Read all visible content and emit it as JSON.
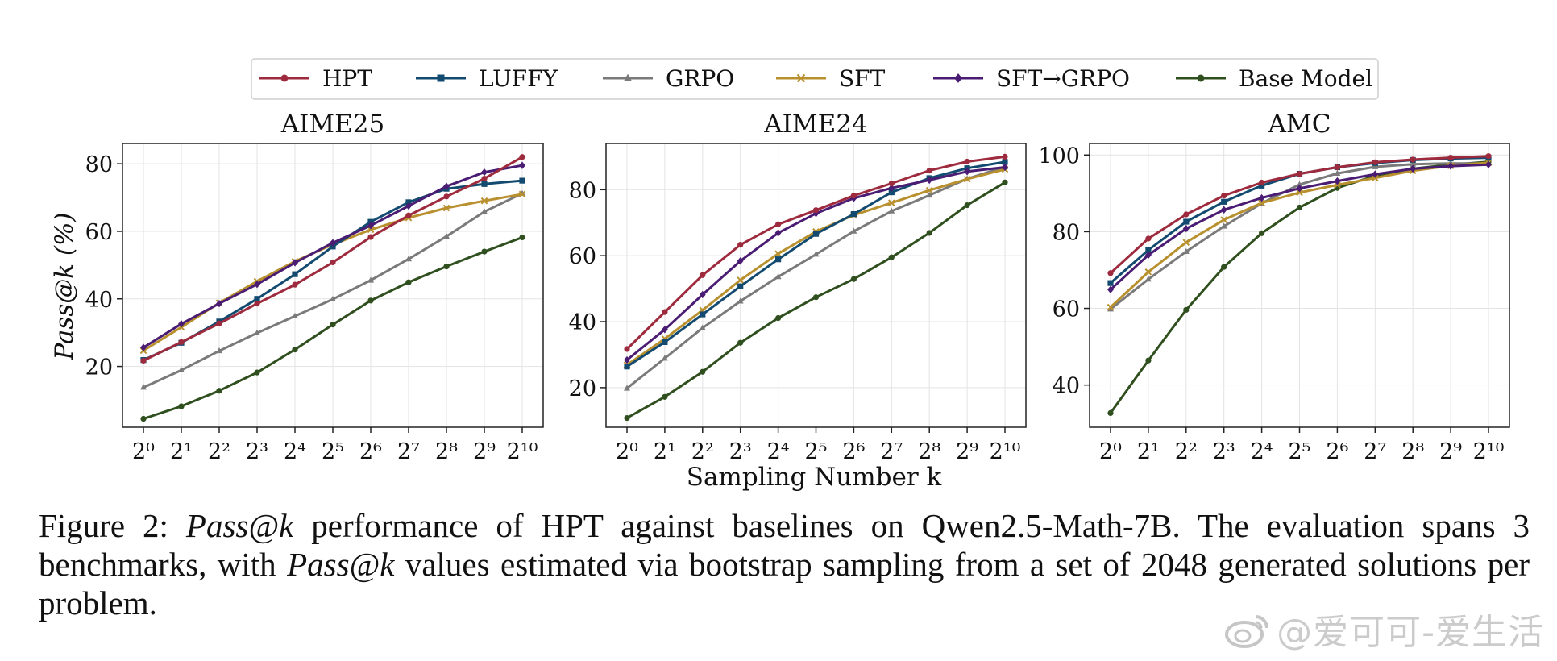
{
  "chart_data": {
    "type": "line",
    "x_tick_labels": [
      "2⁰",
      "2¹",
      "2²",
      "2³",
      "2⁴",
      "2⁵",
      "2⁶",
      "2⁷",
      "2⁸",
      "2⁹",
      "2¹⁰"
    ],
    "x": [
      1,
      2,
      4,
      8,
      16,
      32,
      64,
      128,
      256,
      512,
      1024
    ],
    "xscale": "log2",
    "xlabel": "Sampling Number k",
    "ylabel": "Pass@k (%)",
    "grid": true,
    "legend_placement": "top-center",
    "legend": [
      {
        "name": "HPT",
        "color": "#9e2a3e",
        "marker": "circle"
      },
      {
        "name": "LUFFY",
        "color": "#134b70",
        "marker": "square"
      },
      {
        "name": "GRPO",
        "color": "#7a7a7a",
        "marker": "triangle"
      },
      {
        "name": "SFT",
        "color": "#b8902e",
        "marker": "x"
      },
      {
        "name": "SFT→GRPO",
        "color": "#4a1c73",
        "marker": "diamond"
      },
      {
        "name": "Base Model",
        "color": "#2f4f1e",
        "marker": "circle"
      }
    ],
    "panels": [
      {
        "title": "AIME25",
        "ylim": [
          2,
          86
        ],
        "yticks": [
          20,
          40,
          60,
          80
        ],
        "series": [
          {
            "name": "HPT",
            "values": [
              21.7,
              27.2,
              32.7,
              38.6,
              44.2,
              50.8,
              58.3,
              64.7,
              70.3,
              75.6,
              82.0
            ]
          },
          {
            "name": "LUFFY",
            "values": [
              21.9,
              27.0,
              33.3,
              40.0,
              47.3,
              55.5,
              62.8,
              68.6,
              72.6,
              74.0,
              75.0
            ]
          },
          {
            "name": "GRPO",
            "values": [
              13.8,
              18.9,
              24.6,
              29.9,
              34.9,
              39.9,
              45.5,
              51.8,
              58.5,
              65.8,
              71.2
            ]
          },
          {
            "name": "SFT",
            "values": [
              24.7,
              31.6,
              38.8,
              45.2,
              51.1,
              56.1,
              60.5,
              64.0,
              66.9,
              69.0,
              71.0
            ]
          },
          {
            "name": "SFT→GRPO",
            "values": [
              25.6,
              32.6,
              38.6,
              44.3,
              50.7,
              56.6,
              61.7,
              67.5,
              73.3,
              77.5,
              79.5
            ]
          },
          {
            "name": "Base Model",
            "values": [
              4.5,
              8.2,
              12.8,
              18.2,
              25.0,
              32.4,
              39.5,
              44.9,
              49.6,
              54.0,
              58.2
            ]
          }
        ]
      },
      {
        "title": "AIME24",
        "ylim": [
          8,
          94
        ],
        "yticks": [
          20,
          40,
          60,
          80
        ],
        "series": [
          {
            "name": "HPT",
            "values": [
              31.7,
              42.9,
              54.1,
              63.3,
              69.5,
              73.8,
              78.2,
              81.9,
              85.8,
              88.5,
              90.0
            ]
          },
          {
            "name": "LUFFY",
            "values": [
              26.4,
              33.8,
              42.2,
              50.7,
              58.9,
              66.6,
              72.6,
              79.2,
              83.5,
              86.5,
              88.4
            ]
          },
          {
            "name": "GRPO",
            "values": [
              19.8,
              28.9,
              38.1,
              46.2,
              53.6,
              60.4,
              67.4,
              73.5,
              78.3,
              83.3,
              86.9
            ]
          },
          {
            "name": "SFT",
            "values": [
              26.9,
              34.8,
              43.5,
              52.6,
              60.6,
              67.3,
              72.3,
              76.0,
              79.8,
              83.2,
              86.2
            ]
          },
          {
            "name": "SFT→GRPO",
            "values": [
              28.4,
              37.6,
              48.2,
              58.4,
              66.9,
              72.8,
              77.4,
              80.5,
              82.9,
              85.5,
              86.8
            ]
          },
          {
            "name": "Base Model",
            "values": [
              10.8,
              17.2,
              24.8,
              33.6,
              41.1,
              47.4,
              52.9,
              59.5,
              66.9,
              75.3,
              82.2
            ]
          }
        ]
      },
      {
        "title": "AMC",
        "ylim": [
          29,
          103
        ],
        "yticks": [
          40,
          60,
          80,
          100
        ],
        "series": [
          {
            "name": "HPT",
            "values": [
              69.2,
              78.2,
              84.5,
              89.4,
              92.8,
              95.1,
              96.8,
              98.1,
              98.8,
              99.3,
              99.7
            ]
          },
          {
            "name": "LUFFY",
            "values": [
              66.6,
              75.2,
              82.6,
              87.8,
              92.0,
              95.1,
              96.8,
              97.9,
              98.7,
              99.1,
              99.3
            ]
          },
          {
            "name": "GRPO",
            "values": [
              59.8,
              67.6,
              74.8,
              81.4,
              87.4,
              92.3,
              95.2,
              96.9,
              97.6,
              97.8,
              97.8
            ]
          },
          {
            "name": "SFT",
            "values": [
              60.3,
              69.5,
              77.2,
              83.1,
              87.5,
              90.2,
              92.2,
              94.0,
              95.9,
              97.2,
              98.0
            ]
          },
          {
            "name": "SFT→GRPO",
            "values": [
              64.9,
              73.9,
              80.8,
              85.7,
              88.8,
              91.3,
              93.2,
              95.0,
              96.4,
              97.1,
              97.5
            ]
          },
          {
            "name": "Base Model",
            "values": [
              32.7,
              46.4,
              59.6,
              70.8,
              79.6,
              86.3,
              91.4,
              94.6,
              96.4,
              97.5,
              98.2
            ]
          }
        ]
      }
    ]
  },
  "caption": {
    "lead": "Figure 2: ",
    "passk1": "Pass@k",
    "text1": " performance of HPT against baselines on Qwen2.5-Math-7B. The evaluation spans 3 benchmarks, with ",
    "passk2": "Pass@k",
    "text2": " values estimated via bootstrap sampling from a set of 2048 generated solutions per problem."
  },
  "watermark": "@爱可可-爱生活"
}
